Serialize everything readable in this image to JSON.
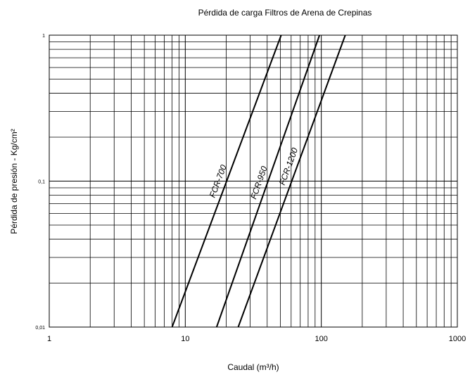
{
  "chart_data": {
    "type": "line",
    "title": "Pérdida de carga Filtros de Arena de Crepinas",
    "xlabel": "Caudal (m³/h)",
    "ylabel": "Pérdida de presión - Kg/cm²",
    "x_scale": "log",
    "y_scale": "log",
    "xlim": [
      1,
      1000
    ],
    "ylim": [
      0.01,
      1
    ],
    "x_ticks": [
      "1",
      "10",
      "100",
      "1000"
    ],
    "y_ticks": [
      "0,01",
      "0,1",
      "1"
    ],
    "grid": true,
    "series": [
      {
        "name": "FCR-700",
        "x": [
          8,
          50.7
        ],
        "y": [
          0.01,
          1
        ]
      },
      {
        "name": "FCR-950",
        "x": [
          17,
          97
        ],
        "y": [
          0.01,
          1
        ]
      },
      {
        "name": "FCR-1200",
        "x": [
          24.5,
          150
        ],
        "y": [
          0.01,
          1
        ]
      }
    ]
  }
}
